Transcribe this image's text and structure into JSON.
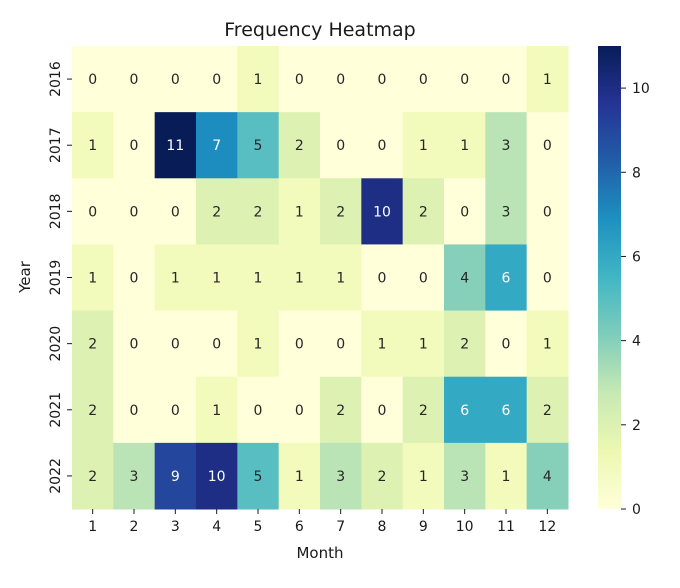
{
  "chart_data": {
    "type": "heatmap",
    "title": "Frequency Heatmap",
    "xlabel": "Month",
    "ylabel": "Year",
    "x": [
      "1",
      "2",
      "3",
      "4",
      "5",
      "6",
      "7",
      "8",
      "9",
      "10",
      "11",
      "12"
    ],
    "y": [
      "2016",
      "2017",
      "2018",
      "2019",
      "2020",
      "2021",
      "2022"
    ],
    "values": [
      [
        0,
        0,
        0,
        0,
        1,
        0,
        0,
        0,
        0,
        0,
        0,
        1
      ],
      [
        1,
        0,
        11,
        7,
        5,
        2,
        0,
        0,
        1,
        1,
        3,
        0
      ],
      [
        0,
        0,
        0,
        2,
        2,
        1,
        2,
        10,
        2,
        0,
        3,
        0
      ],
      [
        1,
        0,
        1,
        1,
        1,
        1,
        1,
        0,
        0,
        4,
        6,
        0
      ],
      [
        2,
        0,
        0,
        0,
        1,
        0,
        0,
        1,
        1,
        2,
        0,
        1
      ],
      [
        2,
        0,
        0,
        1,
        0,
        0,
        2,
        0,
        2,
        6,
        6,
        2
      ],
      [
        2,
        3,
        9,
        10,
        5,
        1,
        3,
        2,
        1,
        3,
        1,
        4
      ]
    ],
    "colorbar": {
      "min": 0,
      "max": 11,
      "ticks": [
        0,
        2,
        4,
        6,
        8,
        10
      ],
      "colormap": "YlGnBu"
    }
  }
}
